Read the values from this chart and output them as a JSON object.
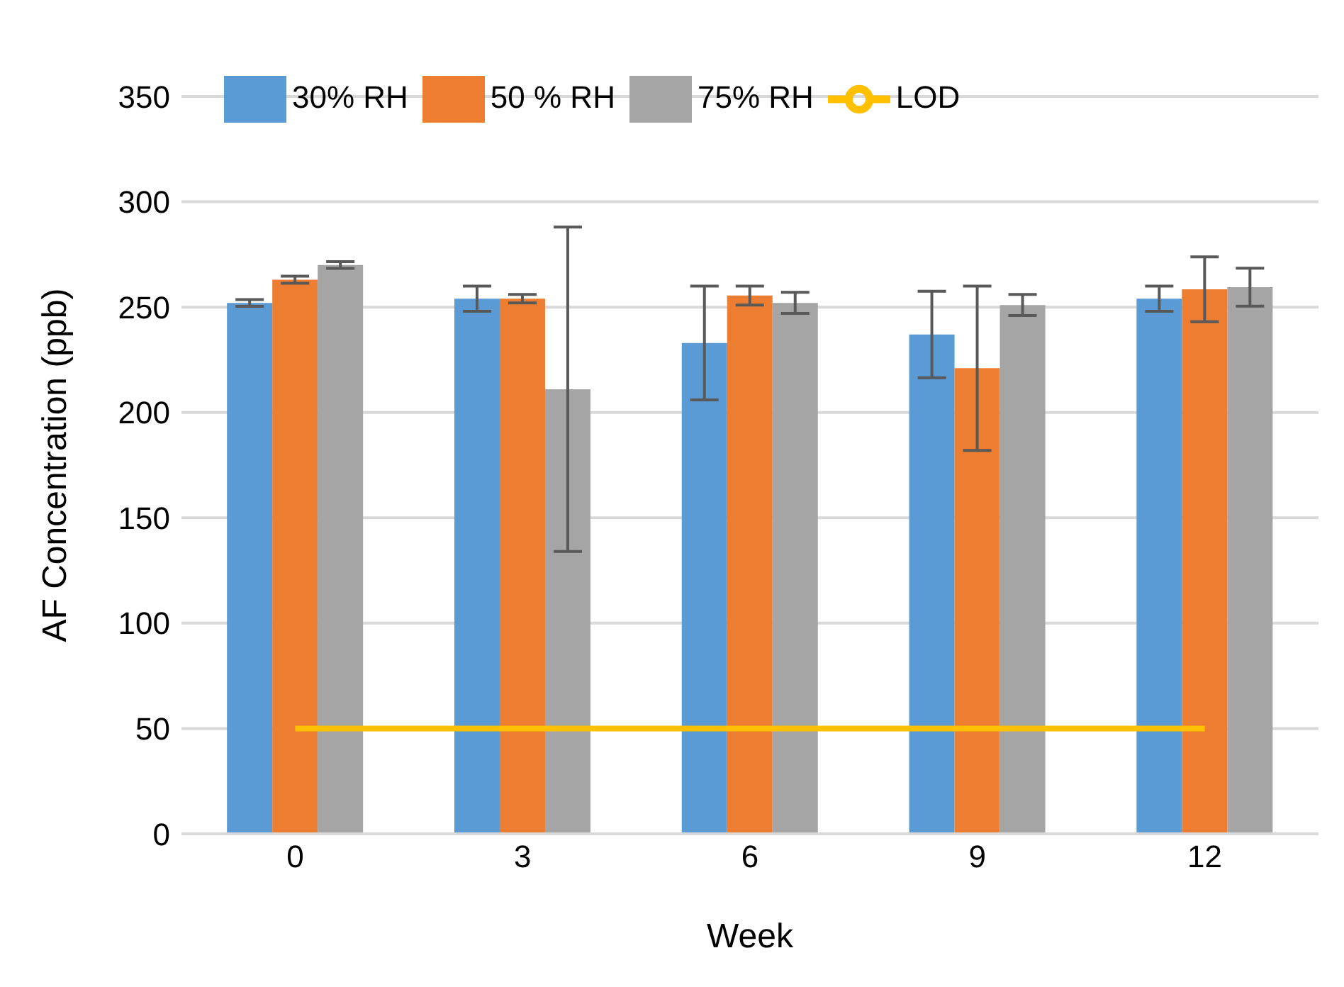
{
  "chart_data": {
    "type": "bar",
    "xlabel": "Week",
    "ylabel": "AF Concentration (ppb)",
    "categories": [
      "0",
      "3",
      "6",
      "9",
      "12"
    ],
    "series": [
      {
        "name": "30% RH",
        "color": "#5b9bd5",
        "values": [
          252,
          254,
          233,
          237,
          254
        ],
        "errors": [
          1.6,
          6,
          27,
          20.5,
          6
        ]
      },
      {
        "name": "50 % RH",
        "color": "#ed7d31",
        "values": [
          263,
          254,
          255.5,
          221,
          258.5
        ],
        "errors": [
          1.7,
          2,
          4.5,
          39,
          15.4
        ]
      },
      {
        "name": "75% RH",
        "color": "#a5a5a5",
        "values": [
          270,
          211,
          252,
          251,
          259.5
        ],
        "errors": [
          1.6,
          77,
          5,
          5,
          9
        ]
      },
      {
        "name": "LOD",
        "type": "line",
        "color": "#ffc000",
        "values": [
          50,
          50,
          50,
          50,
          50
        ],
        "marker": "none",
        "line_style": "solid"
      }
    ],
    "ylim": [
      0,
      350
    ],
    "yticks": [
      0,
      50,
      100,
      150,
      200,
      250,
      300,
      350
    ],
    "grid": "y",
    "legend": "top left"
  }
}
